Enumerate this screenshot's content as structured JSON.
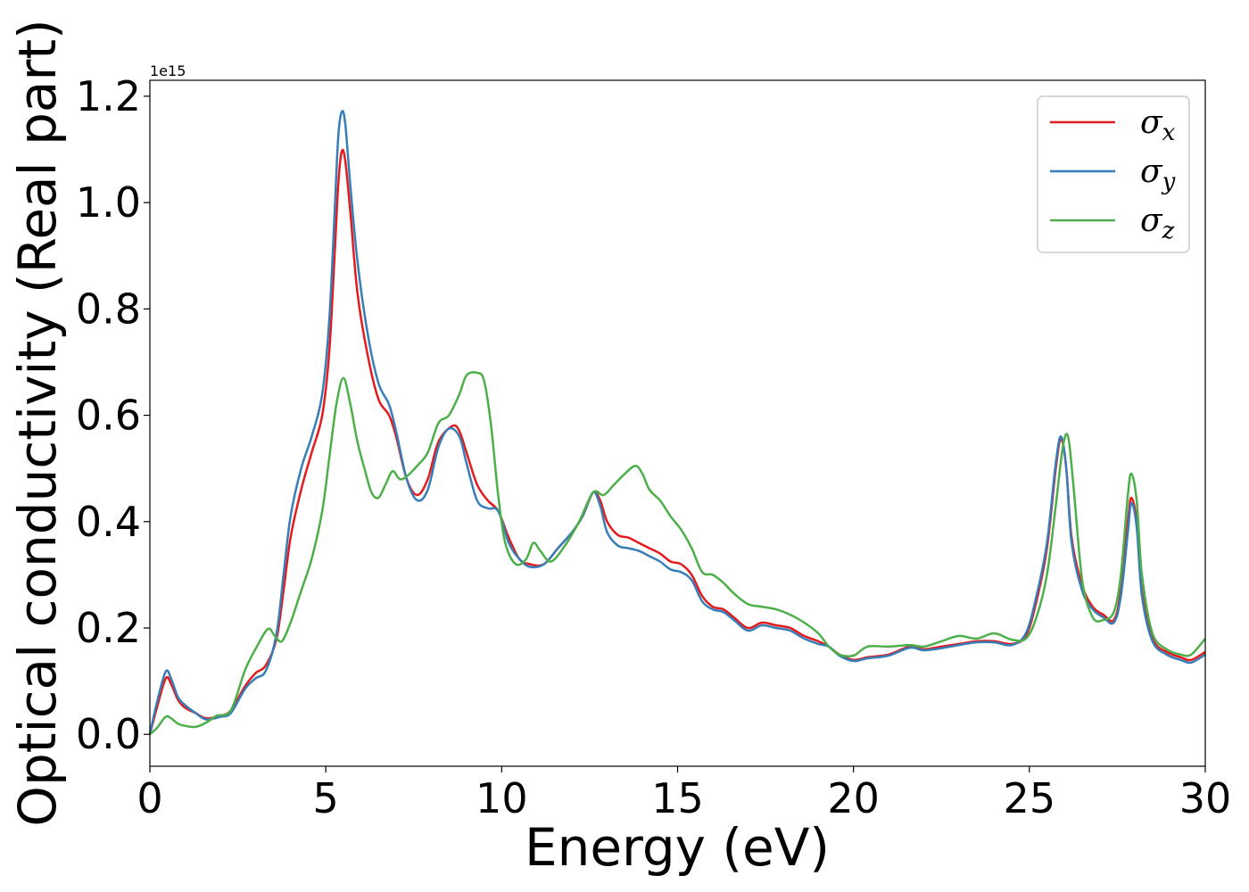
{
  "chart_data": {
    "type": "line",
    "title": "",
    "xlabel": "Energy (eV)",
    "ylabel": "Optical conductivity (Real part)",
    "y_offset_label": "1e15",
    "xlim": [
      0,
      30
    ],
    "ylim": [
      -0.06,
      1.23
    ],
    "x_ticks": [
      0,
      5,
      10,
      15,
      20,
      25,
      30
    ],
    "x_tick_labels": [
      "0",
      "5",
      "10",
      "15",
      "20",
      "25",
      "30"
    ],
    "y_ticks": [
      0.0,
      0.2,
      0.4,
      0.6,
      0.8,
      1.0,
      1.2
    ],
    "y_tick_labels": [
      "0.0",
      "0.2",
      "0.4",
      "0.6",
      "0.8",
      "1.0",
      "1.2"
    ],
    "grid": false,
    "legend_position": "top-right",
    "series": [
      {
        "name": "σx",
        "symbol": "σ",
        "subscript": "x",
        "color": "#e41a1c",
        "points": [
          [
            0,
            0
          ],
          [
            0.2,
            0.05
          ],
          [
            0.45,
            0.105
          ],
          [
            0.6,
            0.095
          ],
          [
            0.8,
            0.065
          ],
          [
            1.0,
            0.05
          ],
          [
            1.3,
            0.04
          ],
          [
            1.6,
            0.03
          ],
          [
            2.0,
            0.035
          ],
          [
            2.3,
            0.045
          ],
          [
            2.7,
            0.09
          ],
          [
            3.0,
            0.115
          ],
          [
            3.3,
            0.13
          ],
          [
            3.6,
            0.18
          ],
          [
            3.8,
            0.27
          ],
          [
            4.0,
            0.37
          ],
          [
            4.3,
            0.46
          ],
          [
            4.6,
            0.53
          ],
          [
            4.9,
            0.6
          ],
          [
            5.1,
            0.72
          ],
          [
            5.25,
            0.9
          ],
          [
            5.35,
            1.03
          ],
          [
            5.45,
            1.095
          ],
          [
            5.55,
            1.08
          ],
          [
            5.7,
            0.98
          ],
          [
            5.9,
            0.83
          ],
          [
            6.2,
            0.71
          ],
          [
            6.5,
            0.63
          ],
          [
            6.8,
            0.6
          ],
          [
            7.0,
            0.56
          ],
          [
            7.3,
            0.48
          ],
          [
            7.6,
            0.45
          ],
          [
            7.9,
            0.48
          ],
          [
            8.2,
            0.55
          ],
          [
            8.6,
            0.58
          ],
          [
            8.8,
            0.57
          ],
          [
            9.0,
            0.53
          ],
          [
            9.3,
            0.47
          ],
          [
            9.6,
            0.44
          ],
          [
            9.9,
            0.42
          ],
          [
            10.2,
            0.37
          ],
          [
            10.5,
            0.33
          ],
          [
            10.8,
            0.32
          ],
          [
            11.2,
            0.32
          ],
          [
            11.6,
            0.35
          ],
          [
            12.0,
            0.38
          ],
          [
            12.3,
            0.41
          ],
          [
            12.6,
            0.455
          ],
          [
            12.8,
            0.44
          ],
          [
            13.0,
            0.4
          ],
          [
            13.3,
            0.375
          ],
          [
            13.6,
            0.37
          ],
          [
            13.9,
            0.36
          ],
          [
            14.2,
            0.35
          ],
          [
            14.5,
            0.34
          ],
          [
            14.8,
            0.325
          ],
          [
            15.1,
            0.32
          ],
          [
            15.4,
            0.3
          ],
          [
            15.7,
            0.26
          ],
          [
            16.0,
            0.24
          ],
          [
            16.3,
            0.235
          ],
          [
            16.6,
            0.22
          ],
          [
            17.0,
            0.2
          ],
          [
            17.4,
            0.21
          ],
          [
            17.8,
            0.205
          ],
          [
            18.2,
            0.2
          ],
          [
            18.6,
            0.185
          ],
          [
            19.0,
            0.175
          ],
          [
            19.3,
            0.165
          ],
          [
            19.6,
            0.15
          ],
          [
            20.0,
            0.14
          ],
          [
            20.4,
            0.145
          ],
          [
            21.0,
            0.15
          ],
          [
            21.6,
            0.165
          ],
          [
            22.0,
            0.16
          ],
          [
            22.5,
            0.165
          ],
          [
            23.0,
            0.17
          ],
          [
            23.5,
            0.175
          ],
          [
            24.0,
            0.175
          ],
          [
            24.5,
            0.17
          ],
          [
            24.9,
            0.185
          ],
          [
            25.2,
            0.25
          ],
          [
            25.5,
            0.35
          ],
          [
            25.75,
            0.5
          ],
          [
            25.9,
            0.555
          ],
          [
            26.05,
            0.5
          ],
          [
            26.2,
            0.37
          ],
          [
            26.5,
            0.28
          ],
          [
            26.8,
            0.24
          ],
          [
            27.1,
            0.225
          ],
          [
            27.4,
            0.215
          ],
          [
            27.6,
            0.27
          ],
          [
            27.8,
            0.4
          ],
          [
            27.9,
            0.445
          ],
          [
            28.05,
            0.4
          ],
          [
            28.2,
            0.27
          ],
          [
            28.5,
            0.18
          ],
          [
            28.9,
            0.155
          ],
          [
            29.3,
            0.145
          ],
          [
            29.6,
            0.14
          ],
          [
            30.0,
            0.155
          ]
        ]
      },
      {
        "name": "σy",
        "symbol": "σ",
        "subscript": "y",
        "color": "#377eb8",
        "points": [
          [
            0,
            0
          ],
          [
            0.2,
            0.06
          ],
          [
            0.45,
            0.118
          ],
          [
            0.6,
            0.105
          ],
          [
            0.8,
            0.07
          ],
          [
            1.0,
            0.055
          ],
          [
            1.3,
            0.04
          ],
          [
            1.6,
            0.028
          ],
          [
            2.0,
            0.033
          ],
          [
            2.3,
            0.04
          ],
          [
            2.7,
            0.085
          ],
          [
            3.0,
            0.105
          ],
          [
            3.3,
            0.12
          ],
          [
            3.6,
            0.19
          ],
          [
            3.8,
            0.3
          ],
          [
            4.0,
            0.41
          ],
          [
            4.3,
            0.5
          ],
          [
            4.6,
            0.56
          ],
          [
            4.9,
            0.64
          ],
          [
            5.1,
            0.78
          ],
          [
            5.25,
            0.98
          ],
          [
            5.35,
            1.12
          ],
          [
            5.45,
            1.17
          ],
          [
            5.55,
            1.15
          ],
          [
            5.7,
            1.03
          ],
          [
            5.9,
            0.89
          ],
          [
            6.2,
            0.75
          ],
          [
            6.5,
            0.66
          ],
          [
            6.8,
            0.62
          ],
          [
            7.0,
            0.57
          ],
          [
            7.3,
            0.48
          ],
          [
            7.6,
            0.44
          ],
          [
            7.9,
            0.46
          ],
          [
            8.2,
            0.54
          ],
          [
            8.5,
            0.575
          ],
          [
            8.8,
            0.56
          ],
          [
            9.0,
            0.51
          ],
          [
            9.3,
            0.44
          ],
          [
            9.6,
            0.425
          ],
          [
            9.9,
            0.42
          ],
          [
            10.2,
            0.36
          ],
          [
            10.5,
            0.33
          ],
          [
            10.8,
            0.315
          ],
          [
            11.2,
            0.32
          ],
          [
            11.6,
            0.35
          ],
          [
            12.0,
            0.38
          ],
          [
            12.3,
            0.41
          ],
          [
            12.6,
            0.455
          ],
          [
            12.8,
            0.43
          ],
          [
            13.0,
            0.38
          ],
          [
            13.3,
            0.355
          ],
          [
            13.6,
            0.35
          ],
          [
            13.9,
            0.345
          ],
          [
            14.2,
            0.335
          ],
          [
            14.5,
            0.325
          ],
          [
            14.8,
            0.31
          ],
          [
            15.1,
            0.305
          ],
          [
            15.4,
            0.29
          ],
          [
            15.7,
            0.25
          ],
          [
            16.0,
            0.235
          ],
          [
            16.3,
            0.23
          ],
          [
            16.6,
            0.215
          ],
          [
            17.0,
            0.195
          ],
          [
            17.4,
            0.205
          ],
          [
            17.8,
            0.2
          ],
          [
            18.2,
            0.195
          ],
          [
            18.6,
            0.18
          ],
          [
            19.0,
            0.17
          ],
          [
            19.3,
            0.165
          ],
          [
            19.6,
            0.148
          ],
          [
            20.0,
            0.138
          ],
          [
            20.4,
            0.143
          ],
          [
            21.0,
            0.148
          ],
          [
            21.6,
            0.163
          ],
          [
            22.0,
            0.158
          ],
          [
            22.5,
            0.162
          ],
          [
            23.0,
            0.168
          ],
          [
            23.5,
            0.173
          ],
          [
            24.0,
            0.173
          ],
          [
            24.5,
            0.168
          ],
          [
            24.9,
            0.19
          ],
          [
            25.2,
            0.26
          ],
          [
            25.5,
            0.36
          ],
          [
            25.75,
            0.51
          ],
          [
            25.9,
            0.56
          ],
          [
            26.05,
            0.5
          ],
          [
            26.2,
            0.36
          ],
          [
            26.5,
            0.27
          ],
          [
            26.8,
            0.235
          ],
          [
            27.1,
            0.22
          ],
          [
            27.4,
            0.21
          ],
          [
            27.6,
            0.26
          ],
          [
            27.8,
            0.38
          ],
          [
            27.9,
            0.435
          ],
          [
            28.05,
            0.39
          ],
          [
            28.2,
            0.26
          ],
          [
            28.5,
            0.175
          ],
          [
            28.9,
            0.15
          ],
          [
            29.3,
            0.14
          ],
          [
            29.6,
            0.135
          ],
          [
            30.0,
            0.15
          ]
        ]
      },
      {
        "name": "σz",
        "symbol": "σ",
        "subscript": "z",
        "color": "#4daf4a",
        "points": [
          [
            0,
            0
          ],
          [
            0.2,
            0.012
          ],
          [
            0.45,
            0.033
          ],
          [
            0.6,
            0.03
          ],
          [
            0.8,
            0.02
          ],
          [
            1.0,
            0.016
          ],
          [
            1.3,
            0.014
          ],
          [
            1.6,
            0.022
          ],
          [
            1.9,
            0.035
          ],
          [
            2.3,
            0.045
          ],
          [
            2.7,
            0.12
          ],
          [
            3.0,
            0.16
          ],
          [
            3.35,
            0.198
          ],
          [
            3.55,
            0.185
          ],
          [
            3.75,
            0.175
          ],
          [
            4.0,
            0.21
          ],
          [
            4.3,
            0.27
          ],
          [
            4.6,
            0.33
          ],
          [
            4.9,
            0.42
          ],
          [
            5.1,
            0.52
          ],
          [
            5.3,
            0.62
          ],
          [
            5.5,
            0.67
          ],
          [
            5.7,
            0.62
          ],
          [
            5.9,
            0.55
          ],
          [
            6.1,
            0.5
          ],
          [
            6.3,
            0.455
          ],
          [
            6.5,
            0.445
          ],
          [
            6.7,
            0.47
          ],
          [
            6.9,
            0.495
          ],
          [
            7.1,
            0.48
          ],
          [
            7.3,
            0.485
          ],
          [
            7.6,
            0.505
          ],
          [
            7.9,
            0.53
          ],
          [
            8.2,
            0.585
          ],
          [
            8.5,
            0.6
          ],
          [
            8.8,
            0.64
          ],
          [
            9.0,
            0.675
          ],
          [
            9.3,
            0.68
          ],
          [
            9.5,
            0.665
          ],
          [
            9.7,
            0.58
          ],
          [
            9.9,
            0.45
          ],
          [
            10.1,
            0.36
          ],
          [
            10.4,
            0.32
          ],
          [
            10.7,
            0.33
          ],
          [
            10.9,
            0.36
          ],
          [
            11.1,
            0.345
          ],
          [
            11.4,
            0.325
          ],
          [
            11.8,
            0.355
          ],
          [
            12.2,
            0.4
          ],
          [
            12.6,
            0.455
          ],
          [
            12.9,
            0.45
          ],
          [
            13.2,
            0.47
          ],
          [
            13.5,
            0.49
          ],
          [
            13.8,
            0.505
          ],
          [
            14.0,
            0.49
          ],
          [
            14.2,
            0.46
          ],
          [
            14.5,
            0.44
          ],
          [
            14.8,
            0.41
          ],
          [
            15.1,
            0.385
          ],
          [
            15.4,
            0.35
          ],
          [
            15.7,
            0.305
          ],
          [
            16.0,
            0.3
          ],
          [
            16.3,
            0.285
          ],
          [
            16.6,
            0.265
          ],
          [
            17.0,
            0.245
          ],
          [
            17.4,
            0.24
          ],
          [
            17.8,
            0.235
          ],
          [
            18.2,
            0.225
          ],
          [
            18.6,
            0.21
          ],
          [
            19.0,
            0.19
          ],
          [
            19.3,
            0.165
          ],
          [
            19.6,
            0.15
          ],
          [
            20.0,
            0.148
          ],
          [
            20.4,
            0.165
          ],
          [
            21.0,
            0.165
          ],
          [
            21.6,
            0.168
          ],
          [
            22.0,
            0.165
          ],
          [
            22.5,
            0.175
          ],
          [
            23.0,
            0.185
          ],
          [
            23.5,
            0.18
          ],
          [
            24.0,
            0.19
          ],
          [
            24.5,
            0.178
          ],
          [
            24.9,
            0.18
          ],
          [
            25.2,
            0.22
          ],
          [
            25.5,
            0.3
          ],
          [
            25.75,
            0.43
          ],
          [
            25.95,
            0.54
          ],
          [
            26.1,
            0.56
          ],
          [
            26.25,
            0.47
          ],
          [
            26.5,
            0.29
          ],
          [
            26.8,
            0.22
          ],
          [
            27.1,
            0.215
          ],
          [
            27.4,
            0.23
          ],
          [
            27.6,
            0.3
          ],
          [
            27.8,
            0.45
          ],
          [
            27.9,
            0.49
          ],
          [
            28.05,
            0.44
          ],
          [
            28.2,
            0.3
          ],
          [
            28.5,
            0.19
          ],
          [
            28.9,
            0.16
          ],
          [
            29.3,
            0.15
          ],
          [
            29.6,
            0.15
          ],
          [
            30.0,
            0.18
          ]
        ]
      }
    ]
  }
}
